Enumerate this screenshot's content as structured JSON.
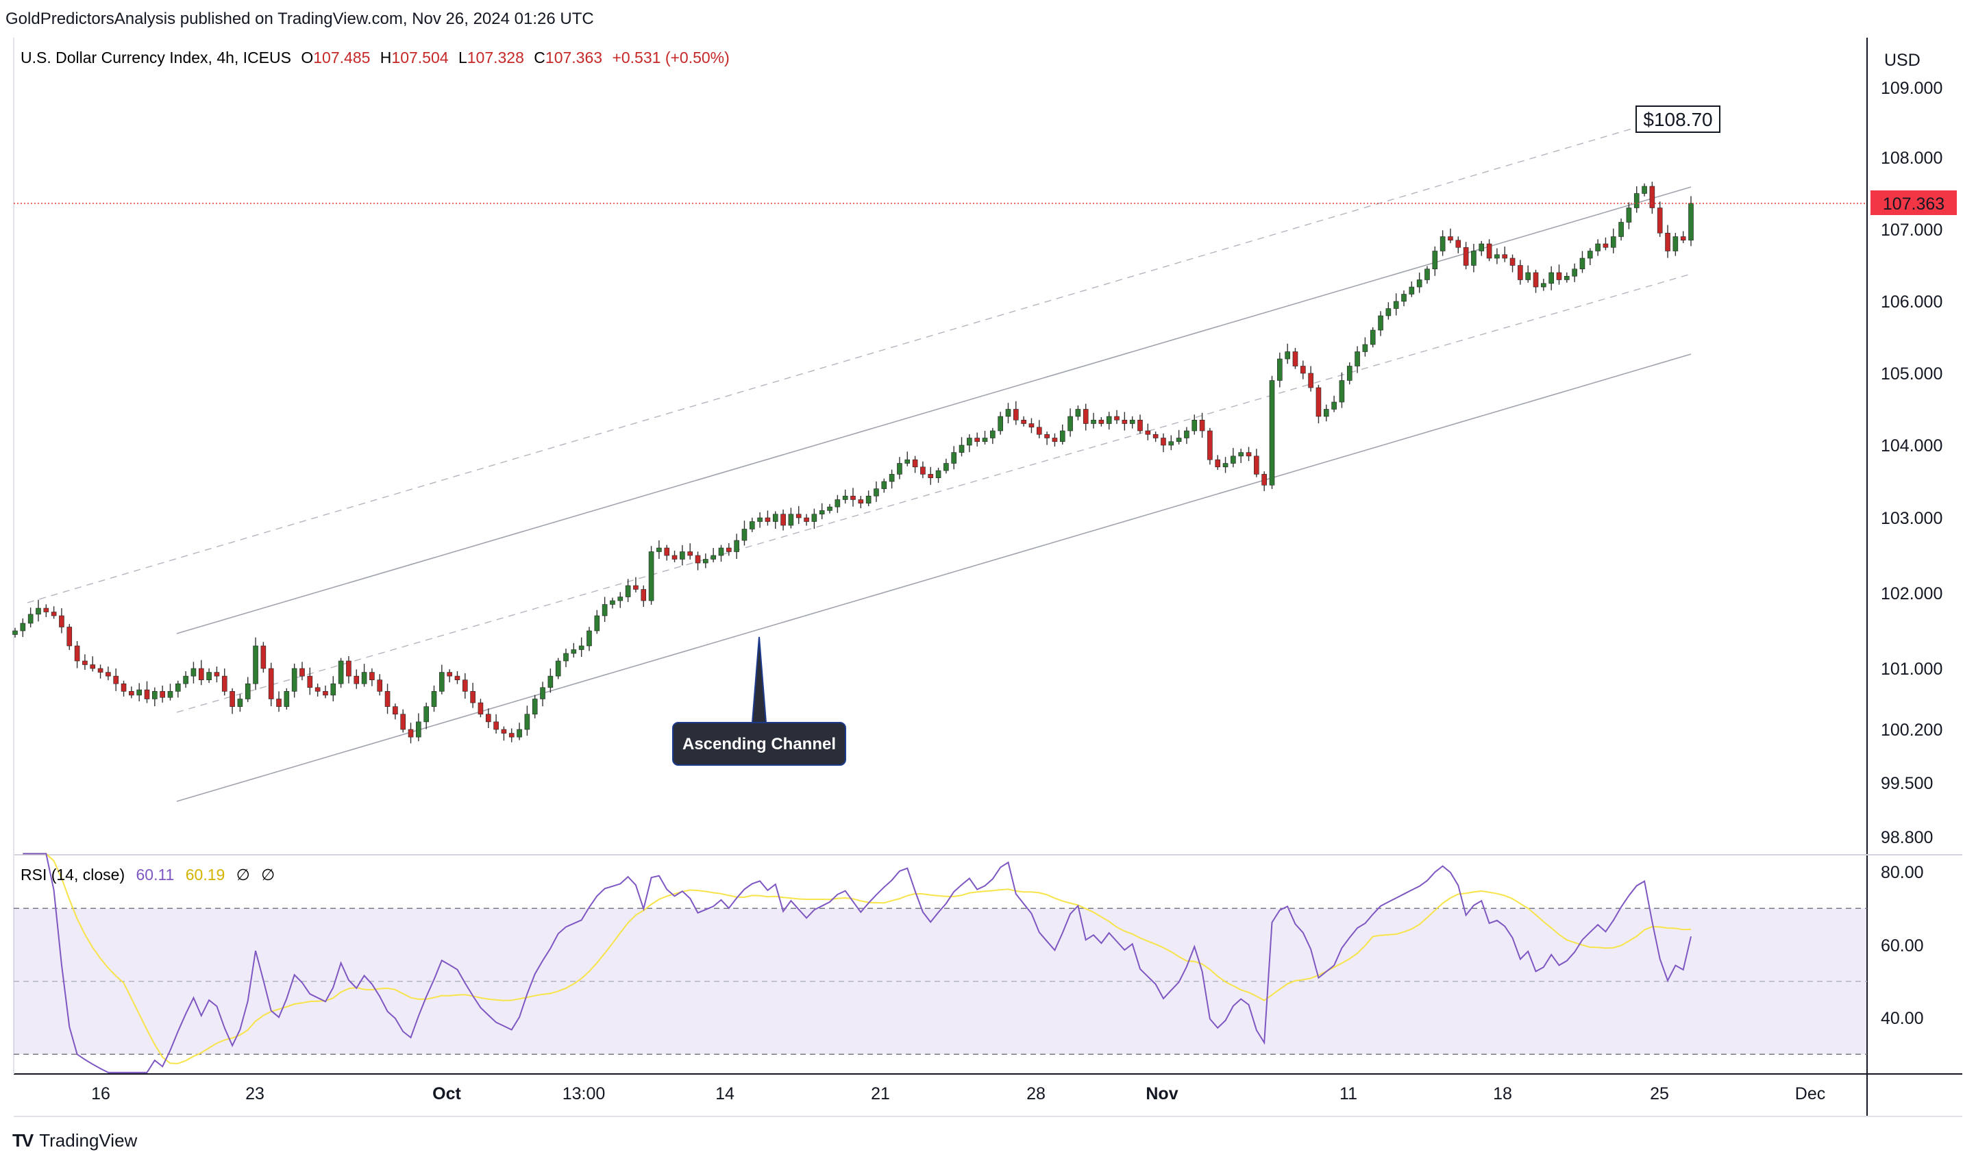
{
  "publisher_line": "GoldPredictorsAnalysis published on TradingView.com, Nov 26, 2024 01:26 UTC",
  "legend": {
    "symbol": "U.S. Dollar Currency Index, 4h, ICEUS",
    "o_label": "O",
    "o": "107.485",
    "h_label": "H",
    "h": "107.504",
    "l_label": "L",
    "l": "107.328",
    "c_label": "C",
    "c": "107.363",
    "change": "+0.531 (+0.50%)"
  },
  "currency": "USD",
  "last_price_tag": "107.363",
  "price_annotation": "$108.70",
  "callout_label": "Ascending Channel",
  "rsi_legend": {
    "label": "RSI (14, close)",
    "rsi": "60.11",
    "ma": "60.19",
    "v1": "∅",
    "v2": "∅"
  },
  "footer_brand": "TradingView",
  "colors": {
    "up": "#2e7d32",
    "down": "#c62828",
    "rsi_line": "#7e57c2",
    "rsi_ma": "#f7e34a",
    "price_line": "#e53935"
  },
  "chart_data": {
    "type": "candlestick",
    "price_axis": {
      "ticks": [
        "109.000",
        "108.000",
        "107.000",
        "106.000",
        "105.000",
        "104.000",
        "103.000",
        "102.000",
        "101.000",
        "100.200",
        "99.500",
        "98.800"
      ],
      "values": [
        109.0,
        108.0,
        107.0,
        106.0,
        105.0,
        104.0,
        103.0,
        102.0,
        101.0,
        100.2,
        99.5,
        98.8
      ]
    },
    "x_ticks": [
      "16",
      "23",
      "Oct",
      "13:00",
      "14",
      "21",
      "28",
      "Nov",
      "11",
      "18",
      "25",
      "Dec"
    ],
    "rsi_axis": {
      "ticks": [
        "80.00",
        "60.00",
        "40.00"
      ],
      "values": [
        80,
        60,
        40
      ],
      "upper_band": 70,
      "middle": 50,
      "lower_band": 30
    },
    "closes": [
      101.5,
      101.6,
      101.72,
      101.8,
      101.75,
      101.7,
      101.55,
      101.3,
      101.1,
      101.05,
      101.0,
      100.95,
      100.9,
      100.8,
      100.7,
      100.65,
      100.72,
      100.6,
      100.7,
      100.62,
      100.7,
      100.8,
      100.9,
      101.0,
      100.85,
      100.95,
      100.9,
      100.7,
      100.5,
      100.6,
      100.8,
      101.3,
      101.0,
      100.6,
      100.5,
      100.7,
      101.0,
      100.9,
      100.75,
      100.7,
      100.65,
      100.8,
      101.1,
      100.9,
      100.8,
      100.95,
      100.85,
      100.7,
      100.5,
      100.4,
      100.2,
      100.1,
      100.3,
      100.5,
      100.7,
      100.95,
      100.9,
      100.85,
      100.7,
      100.55,
      100.4,
      100.3,
      100.2,
      100.15,
      100.1,
      100.2,
      100.4,
      100.6,
      100.75,
      100.9,
      101.1,
      101.2,
      101.25,
      101.3,
      101.5,
      101.7,
      101.85,
      101.9,
      101.95,
      102.1,
      102.05,
      101.9,
      102.55,
      102.6,
      102.5,
      102.45,
      102.55,
      102.5,
      102.4,
      102.45,
      102.5,
      102.6,
      102.55,
      102.7,
      102.85,
      102.95,
      103.0,
      102.95,
      103.05,
      102.9,
      103.05,
      103.0,
      102.95,
      103.05,
      103.1,
      103.15,
      103.25,
      103.3,
      103.25,
      103.2,
      103.3,
      103.4,
      103.5,
      103.6,
      103.75,
      103.8,
      103.7,
      103.6,
      103.55,
      103.65,
      103.75,
      103.9,
      104.0,
      104.1,
      104.05,
      104.1,
      104.2,
      104.4,
      104.5,
      104.35,
      104.3,
      104.25,
      104.15,
      104.1,
      104.05,
      104.2,
      104.4,
      104.5,
      104.3,
      104.35,
      104.3,
      104.4,
      104.35,
      104.3,
      104.35,
      104.2,
      104.15,
      104.1,
      104.0,
      104.05,
      104.1,
      104.2,
      104.35,
      104.2,
      103.8,
      103.7,
      103.75,
      103.85,
      103.9,
      103.85,
      103.6,
      103.45,
      104.9,
      105.2,
      105.3,
      105.1,
      105.0,
      104.8,
      104.4,
      104.5,
      104.6,
      104.9,
      105.1,
      105.3,
      105.4,
      105.6,
      105.8,
      105.9,
      106.0,
      106.1,
      106.2,
      106.3,
      106.45,
      106.7,
      106.9,
      106.85,
      106.75,
      106.5,
      106.7,
      106.8,
      106.6,
      106.65,
      106.6,
      106.5,
      106.3,
      106.4,
      106.2,
      106.25,
      106.4,
      106.3,
      106.35,
      106.45,
      106.6,
      106.7,
      106.8,
      106.75,
      106.9,
      107.1,
      107.3,
      107.5,
      107.6,
      107.3,
      106.95,
      106.7,
      106.9,
      106.85,
      107.363
    ]
  }
}
